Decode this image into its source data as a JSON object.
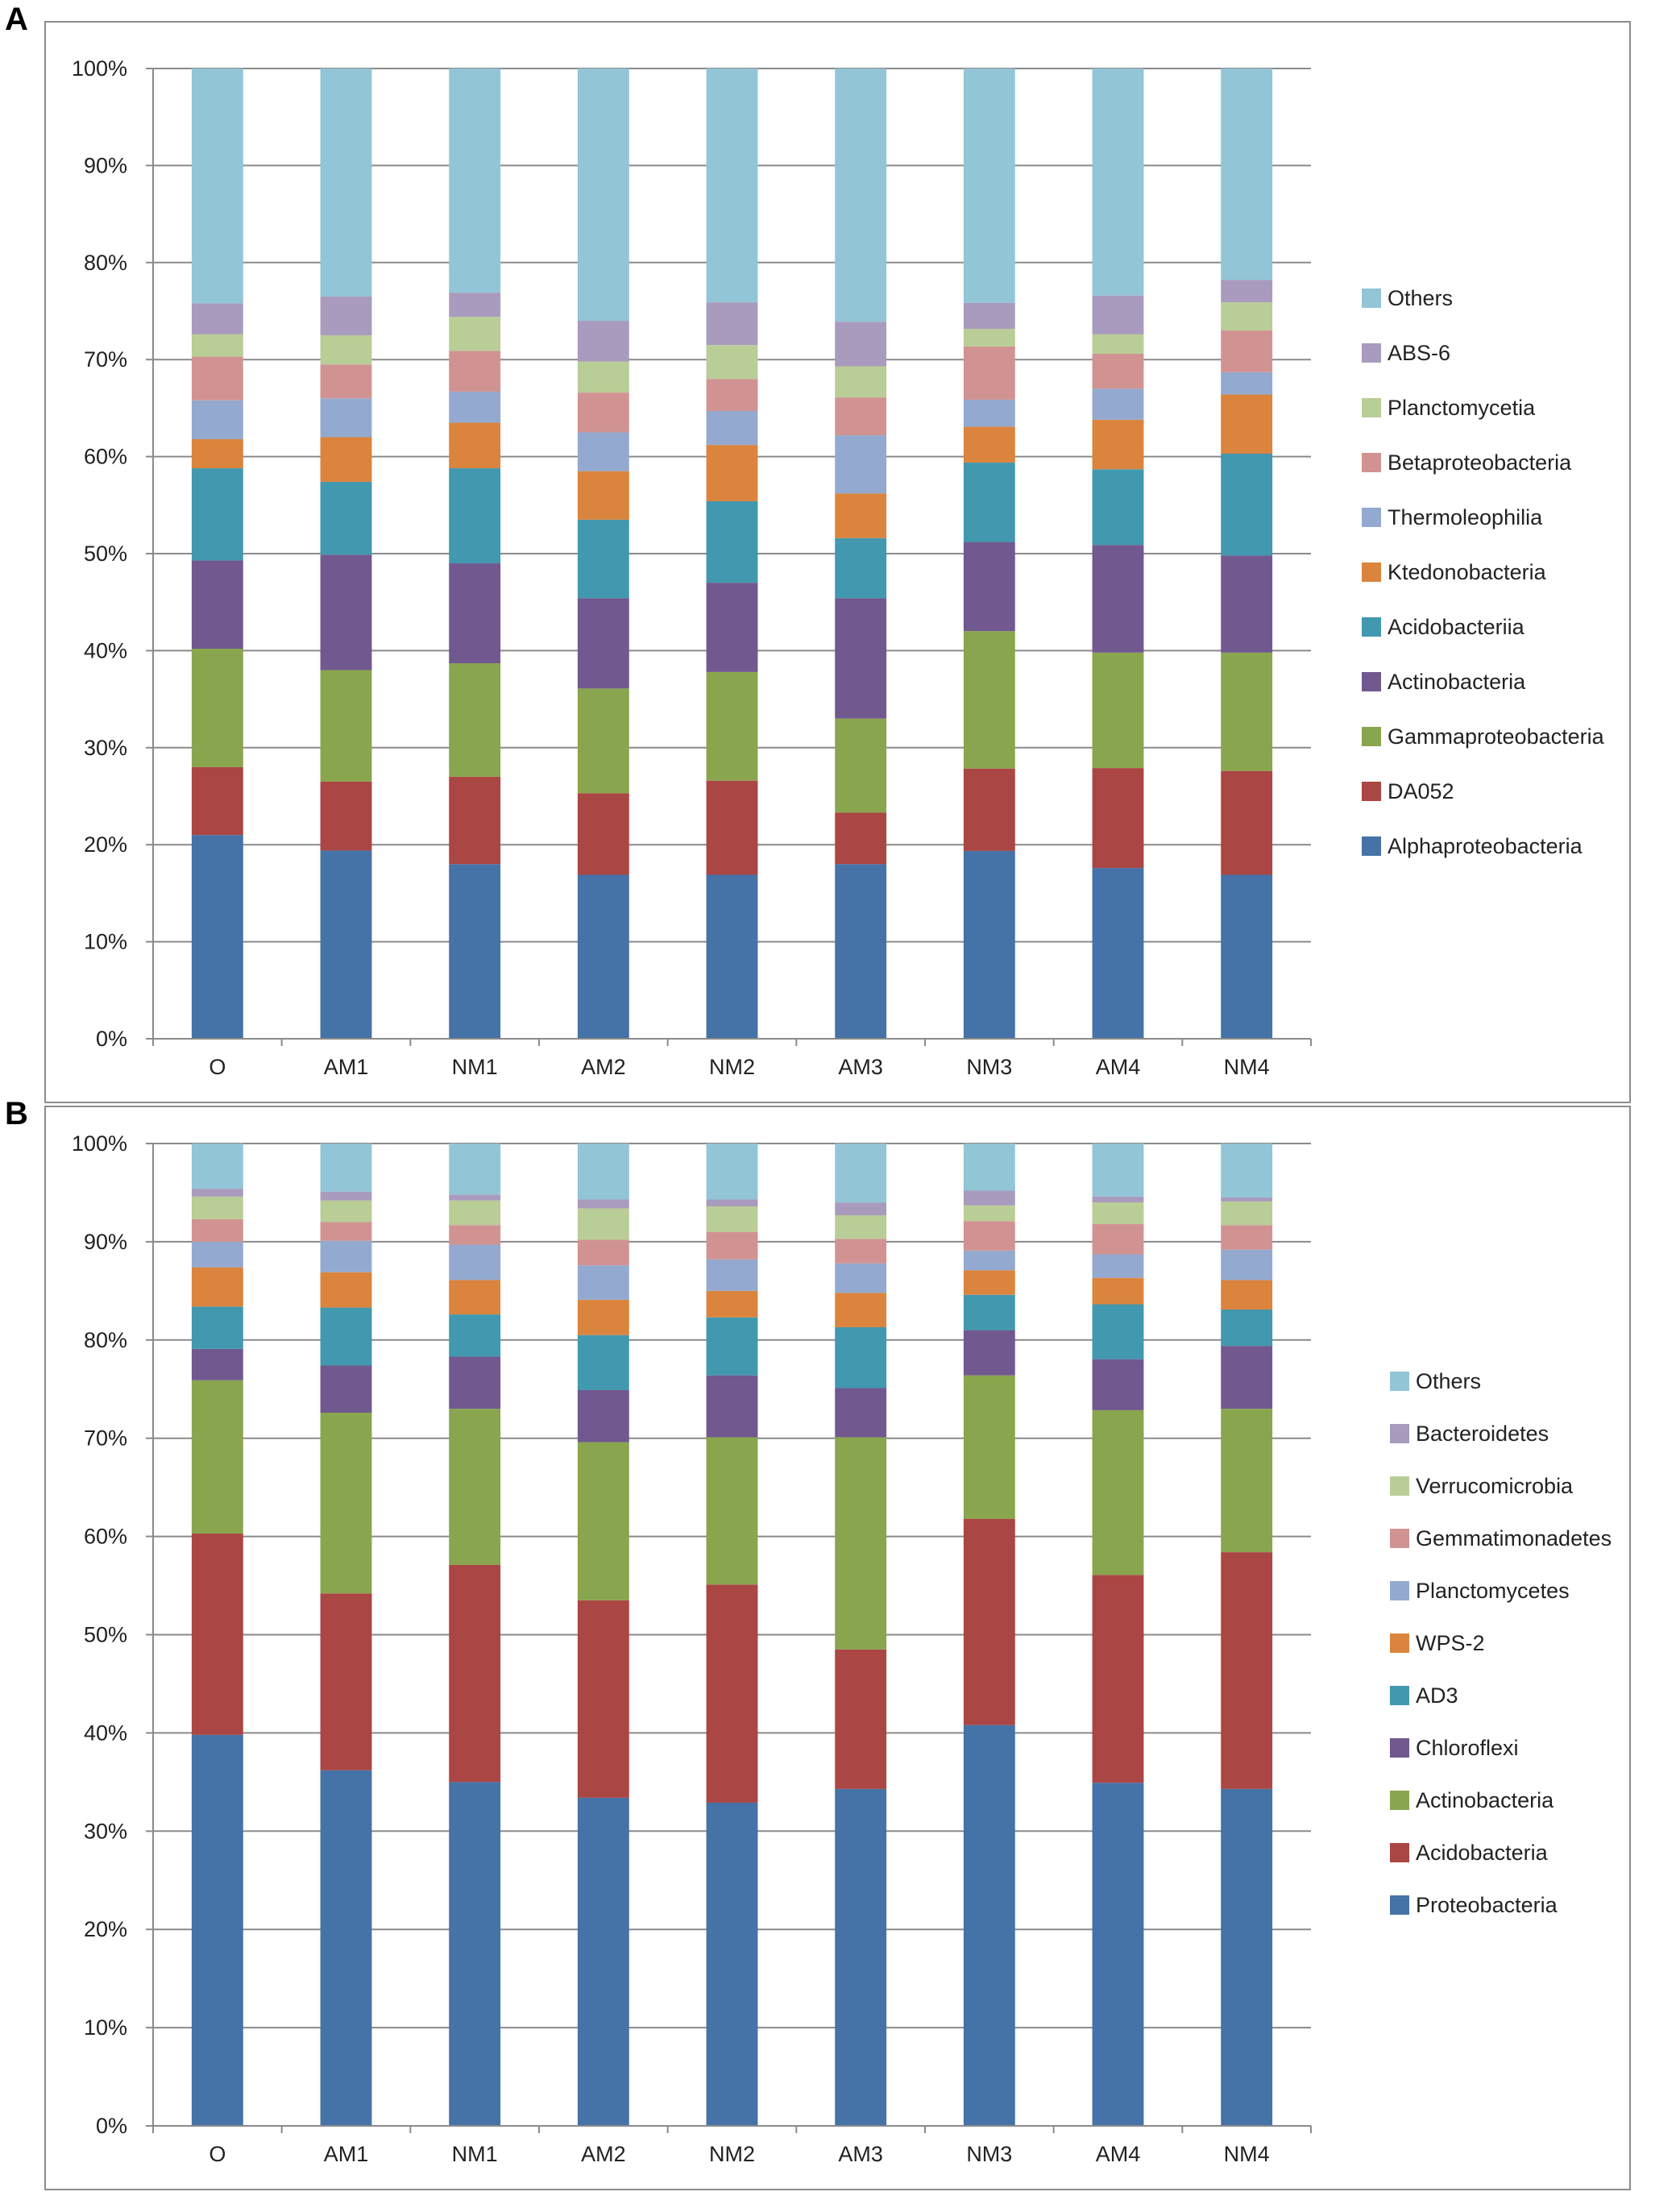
{
  "panels": [
    {
      "label": "A",
      "chart_data": {
        "type": "bar",
        "stacked": true,
        "normalized": true,
        "categories": [
          "O",
          "AM1",
          "NM1",
          "AM2",
          "NM2",
          "AM3",
          "NM3",
          "AM4",
          "NM4"
        ],
        "yticks": [
          "0%",
          "10%",
          "20%",
          "30%",
          "40%",
          "50%",
          "60%",
          "70%",
          "80%",
          "90%",
          "100%"
        ],
        "ylim": [
          0,
          100
        ],
        "grid": true,
        "legend_position": "right",
        "series": [
          {
            "name": "Alphaproteobacteria",
            "color": "#4572A7",
            "values": [
              21.0,
              19.4,
              18.0,
              16.9,
              16.9,
              18.0,
              19.4,
              17.6,
              16.9
            ]
          },
          {
            "name": "DA052",
            "color": "#AA4643",
            "values": [
              7.0,
              7.1,
              9.0,
              8.4,
              9.7,
              5.3,
              8.5,
              10.3,
              10.7
            ]
          },
          {
            "name": "Gammaproteobacteria",
            "color": "#89A54E",
            "values": [
              12.2,
              11.5,
              11.7,
              10.8,
              11.2,
              9.7,
              14.2,
              11.9,
              12.2
            ]
          },
          {
            "name": "Actinobacteria",
            "color": "#71588F",
            "values": [
              9.1,
              11.9,
              10.3,
              9.3,
              9.2,
              12.4,
              9.2,
              11.1,
              10.0
            ]
          },
          {
            "name": "Acidobacteriia",
            "color": "#4198AF",
            "values": [
              9.5,
              7.5,
              9.8,
              8.1,
              8.4,
              6.2,
              8.2,
              7.8,
              10.5
            ]
          },
          {
            "name": "Ktedonobacteria",
            "color": "#DB843D",
            "values": [
              3.0,
              4.6,
              4.7,
              5.0,
              5.8,
              4.6,
              3.7,
              5.1,
              6.1
            ]
          },
          {
            "name": "Thermoleophilia",
            "color": "#93A9CF",
            "values": [
              4.0,
              4.0,
              3.2,
              4.0,
              3.5,
              6.0,
              2.8,
              3.2,
              2.3
            ]
          },
          {
            "name": "Betaproteobacteria",
            "color": "#D19392",
            "values": [
              4.5,
              3.5,
              4.2,
              4.1,
              3.3,
              3.9,
              5.5,
              3.6,
              4.3
            ]
          },
          {
            "name": "Planctomycetia",
            "color": "#B9CD96",
            "values": [
              2.3,
              3.0,
              3.5,
              3.2,
              3.5,
              3.2,
              1.8,
              2.0,
              2.9
            ]
          },
          {
            "name": "ABS-6",
            "color": "#A99BBD",
            "values": [
              3.2,
              4.0,
              2.5,
              4.2,
              4.4,
              4.6,
              2.7,
              4.0,
              2.3
            ]
          },
          {
            "name": "Others",
            "color": "#92C5D6",
            "values": [
              24.2,
              23.5,
              23.1,
              26.0,
              24.1,
              26.1,
              24.2,
              23.4,
              21.8
            ]
          }
        ]
      }
    },
    {
      "label": "B",
      "chart_data": {
        "type": "bar",
        "stacked": true,
        "normalized": true,
        "categories": [
          "O",
          "AM1",
          "NM1",
          "AM2",
          "NM2",
          "AM3",
          "NM3",
          "AM4",
          "NM4"
        ],
        "yticks": [
          "0%",
          "10%",
          "20%",
          "30%",
          "40%",
          "50%",
          "60%",
          "70%",
          "80%",
          "90%",
          "100%"
        ],
        "ylim": [
          0,
          100
        ],
        "grid": true,
        "legend_position": "right",
        "series": [
          {
            "name": "Proteobacteria",
            "color": "#4572A7",
            "values": [
              39.8,
              36.2,
              35.0,
              33.4,
              32.9,
              34.3,
              40.8,
              35.0,
              34.3
            ]
          },
          {
            "name": "Acidobacteria",
            "color": "#AA4643",
            "values": [
              20.5,
              18.0,
              22.1,
              20.1,
              22.2,
              14.2,
              21.0,
              21.2,
              24.1
            ]
          },
          {
            "name": "Actinobacteria",
            "color": "#89A54E",
            "values": [
              15.6,
              18.4,
              15.9,
              16.1,
              15.0,
              21.6,
              14.6,
              16.8,
              14.6
            ]
          },
          {
            "name": "Chloroflexi",
            "color": "#71588F",
            "values": [
              3.2,
              4.8,
              5.3,
              5.3,
              6.3,
              5.0,
              4.6,
              5.2,
              6.4
            ]
          },
          {
            "name": "AD3",
            "color": "#4198AF",
            "values": [
              4.3,
              5.9,
              4.3,
              5.6,
              5.9,
              6.2,
              3.6,
              5.6,
              3.7
            ]
          },
          {
            "name": "WPS-2",
            "color": "#DB843D",
            "values": [
              4.0,
              3.6,
              3.5,
              3.6,
              2.7,
              3.5,
              2.5,
              2.7,
              3.0
            ]
          },
          {
            "name": "Planctomycetes",
            "color": "#93A9CF",
            "values": [
              2.6,
              3.2,
              3.6,
              3.5,
              3.2,
              3.0,
              2.0,
              2.4,
              3.1
            ]
          },
          {
            "name": "Gemmatimonadetes",
            "color": "#D19392",
            "values": [
              2.3,
              1.9,
              2.0,
              2.6,
              2.8,
              2.5,
              3.0,
              3.1,
              2.5
            ]
          },
          {
            "name": "Verrucomicrobia",
            "color": "#B9CD96",
            "values": [
              2.3,
              2.2,
              2.5,
              3.2,
              2.6,
              2.4,
              1.6,
              2.2,
              2.4
            ]
          },
          {
            "name": "Bacteroidetes",
            "color": "#A99BBD",
            "values": [
              0.8,
              0.9,
              0.6,
              0.9,
              0.7,
              1.3,
              1.5,
              0.6,
              0.4
            ]
          },
          {
            "name": "Others",
            "color": "#92C5D6",
            "values": [
              4.6,
              4.9,
              5.2,
              5.7,
              5.7,
              6.0,
              4.8,
              5.4,
              5.5
            ]
          }
        ]
      }
    }
  ]
}
